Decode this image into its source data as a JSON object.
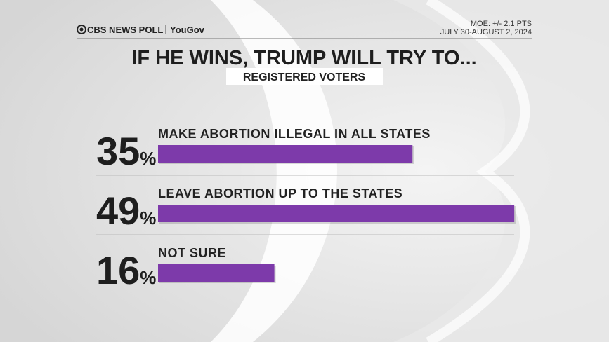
{
  "header": {
    "brand": "CBS NEWS POLL",
    "partner": "YouGov",
    "moe": "MOE: +/- 2.1 PTS",
    "dates": "JULY 30-AUGUST 2, 2024"
  },
  "chart_data": {
    "type": "bar",
    "orientation": "horizontal",
    "title": "IF HE WINS, TRUMP WILL TRY TO...",
    "subtitle": "REGISTERED VOTERS",
    "categories": [
      "MAKE ABORTION ILLEGAL IN ALL STATES",
      "LEAVE ABORTION UP TO THE STATES",
      "NOT SURE"
    ],
    "values": [
      35,
      49,
      16
    ],
    "value_labels": [
      "35%",
      "49%",
      "16%"
    ],
    "color": "#7d3aaa"
  }
}
